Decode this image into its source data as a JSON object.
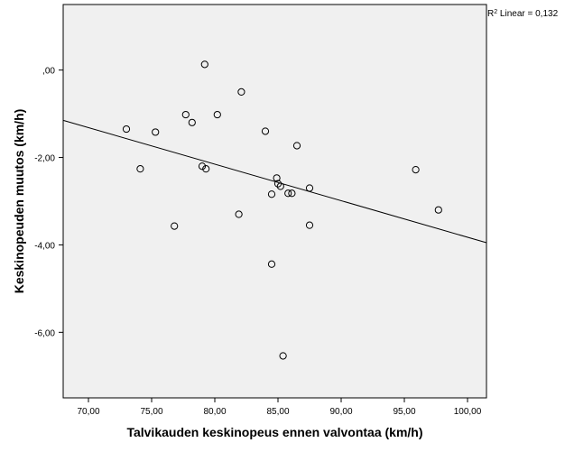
{
  "chart_data": {
    "type": "scatter",
    "xlabel": "Talvikauden keskinopeus ennen valvontaa (km/h)",
    "ylabel": "Keskinopeuden muutos (km/h)",
    "xlim": [
      68.0,
      101.5
    ],
    "ylim": [
      -7.5,
      1.5
    ],
    "x_ticks": [
      70,
      75,
      80,
      85,
      90,
      95,
      100
    ],
    "x_tick_labels": [
      "70,00",
      "75,00",
      "80,00",
      "85,00",
      "90,00",
      "95,00",
      "100,00"
    ],
    "y_ticks": [
      0,
      -2,
      -4,
      -6
    ],
    "y_tick_labels": [
      ",00",
      "-2,00",
      "-4,00",
      "-6,00"
    ],
    "plot_background": "#f0f0f0",
    "marker": "open-circle",
    "grid": false,
    "fit_line": {
      "type": "linear",
      "x": [
        68.0,
        101.5
      ],
      "y": [
        -1.15,
        -3.95
      ]
    },
    "r2_annotation": {
      "prefix": "R",
      "sup": "2",
      "text": " Linear = 0,132"
    },
    "points": [
      {
        "x": 79.2,
        "y": 0.13
      },
      {
        "x": 82.1,
        "y": -0.5
      },
      {
        "x": 73.0,
        "y": -1.35
      },
      {
        "x": 75.3,
        "y": -1.42
      },
      {
        "x": 77.7,
        "y": -1.02
      },
      {
        "x": 78.2,
        "y": -1.2
      },
      {
        "x": 80.2,
        "y": -1.02
      },
      {
        "x": 84.0,
        "y": -1.4
      },
      {
        "x": 86.5,
        "y": -1.73
      },
      {
        "x": 74.1,
        "y": -2.26
      },
      {
        "x": 79.0,
        "y": -2.2
      },
      {
        "x": 79.3,
        "y": -2.26
      },
      {
        "x": 84.9,
        "y": -2.47
      },
      {
        "x": 85.0,
        "y": -2.6
      },
      {
        "x": 85.2,
        "y": -2.66
      },
      {
        "x": 84.5,
        "y": -2.84
      },
      {
        "x": 85.8,
        "y": -2.82
      },
      {
        "x": 86.1,
        "y": -2.82
      },
      {
        "x": 87.5,
        "y": -2.7
      },
      {
        "x": 95.9,
        "y": -2.28
      },
      {
        "x": 97.7,
        "y": -3.2
      },
      {
        "x": 76.8,
        "y": -3.57
      },
      {
        "x": 81.9,
        "y": -3.3
      },
      {
        "x": 87.5,
        "y": -3.55
      },
      {
        "x": 84.5,
        "y": -4.44
      },
      {
        "x": 85.4,
        "y": -6.54
      }
    ]
  }
}
